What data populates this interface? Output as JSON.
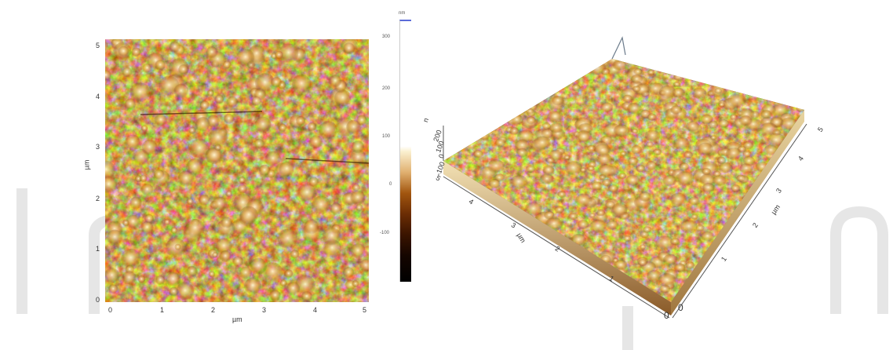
{
  "image_2d": {
    "x_ticks": [
      "0",
      "1",
      "2",
      "3",
      "4",
      "5"
    ],
    "y_ticks": [
      "0",
      "1",
      "2",
      "3",
      "4",
      "5"
    ],
    "x_label": "µm",
    "y_label": "µm"
  },
  "colorbar": {
    "unit": "nm",
    "ticks": [
      "300",
      "200",
      "100",
      "0",
      "-100"
    ]
  },
  "view_3d": {
    "z_label": "n",
    "z_ticks": [
      "200",
      "100",
      "0",
      "-100"
    ],
    "left_axis_ticks": [
      "0",
      "1",
      "2",
      "3",
      "4",
      "5"
    ],
    "left_axis_label": "µm",
    "right_axis_ticks": [
      "0",
      "1",
      "2",
      "3",
      "4",
      "5"
    ],
    "right_axis_label": "µm"
  },
  "colors": {
    "afm_dark": "#3a1500",
    "afm_mid": "#8a4a10",
    "afm_light": "#f5e6b8"
  }
}
